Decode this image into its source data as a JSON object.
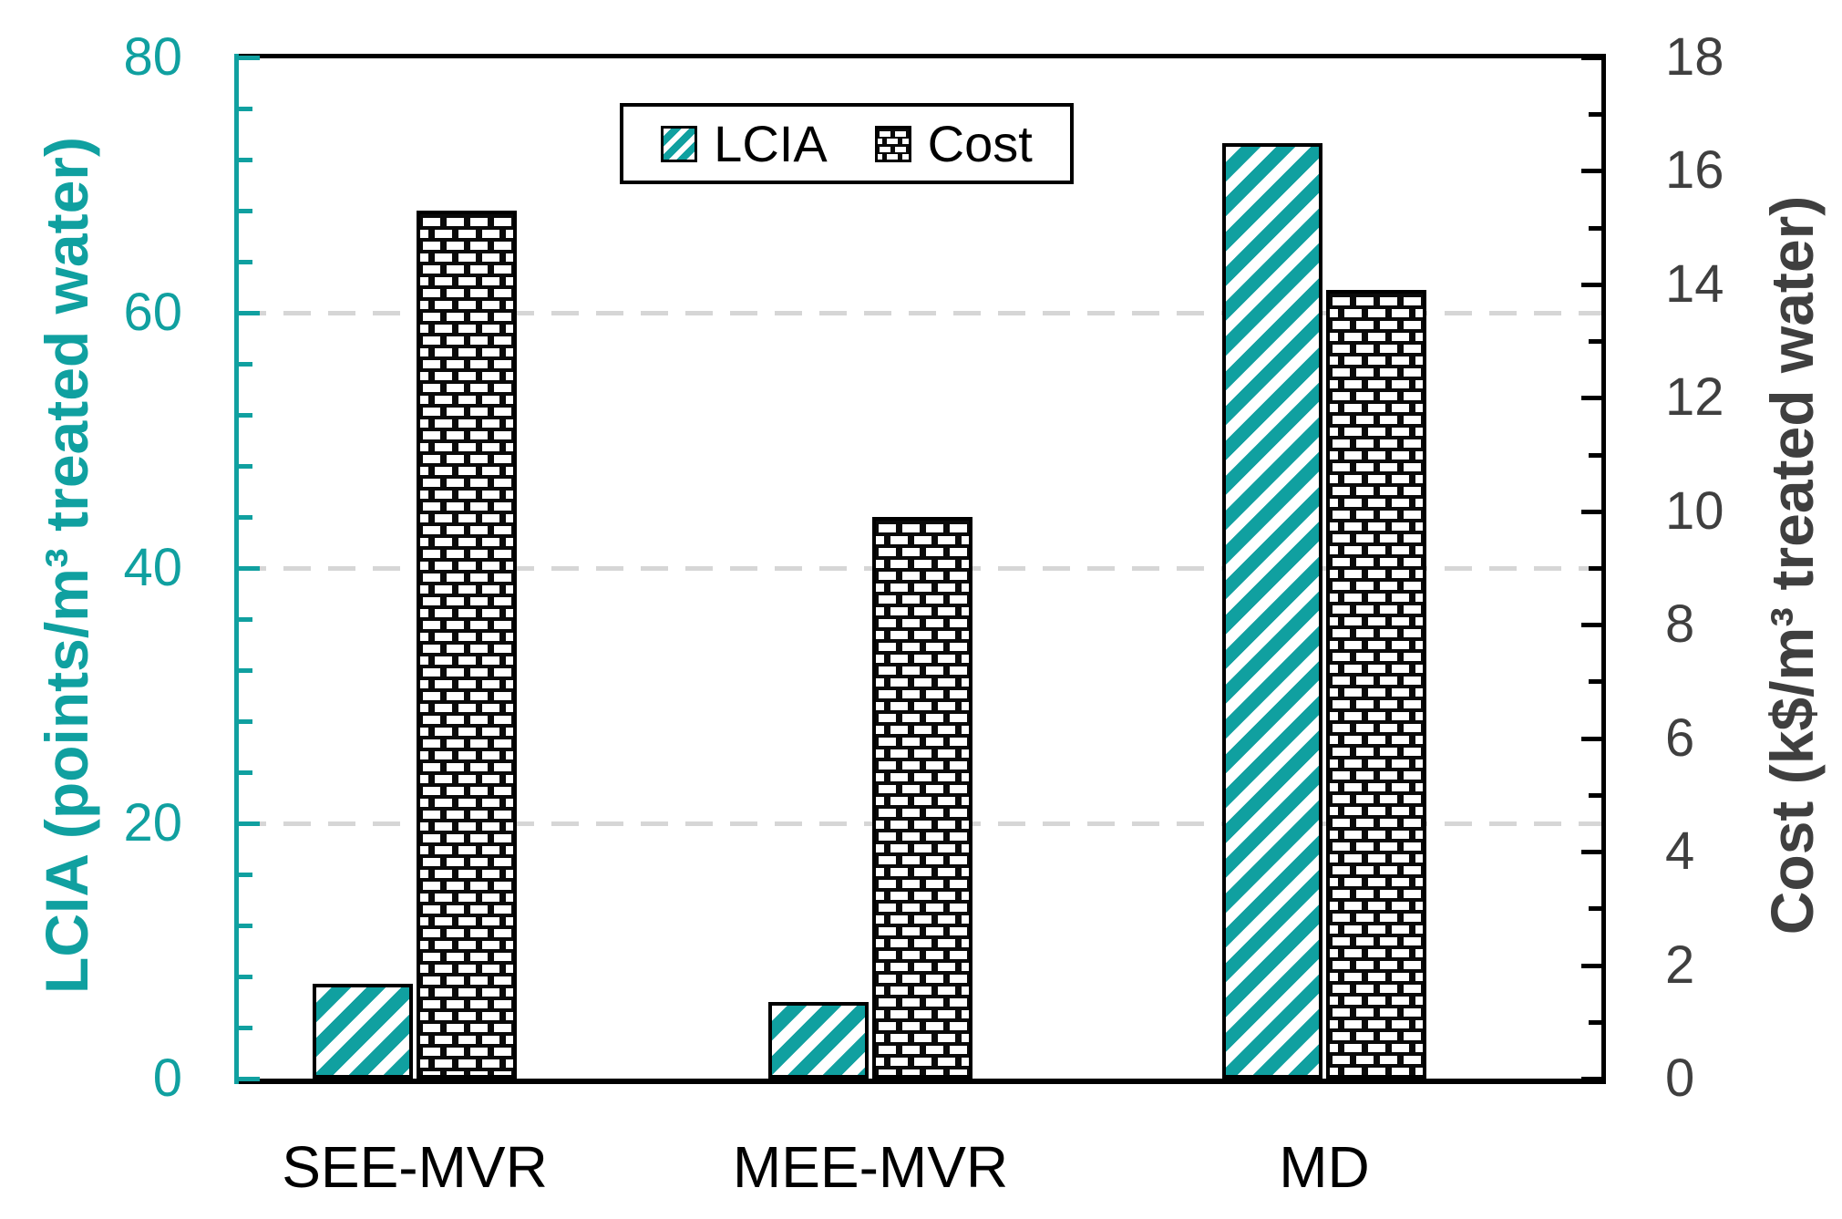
{
  "chart_data": {
    "type": "bar",
    "title": "",
    "categories": [
      "SEE-MVR",
      "MEE-MVR",
      "MD"
    ],
    "series": [
      {
        "name": "LCIA",
        "axis": "left",
        "values": [
          7.4,
          6.0,
          73.3
        ],
        "pattern": "teal-diagonal-hatch",
        "color": "#10a0a0"
      },
      {
        "name": "Cost",
        "axis": "right",
        "values": [
          15.3,
          9.9,
          13.9
        ],
        "pattern": "black-white-dash-brick",
        "color": "#0a0a0a"
      }
    ],
    "left_axis": {
      "label": "LCIA (points/m³ treated water)",
      "min": 0,
      "max": 80,
      "major_step": 20,
      "minor_step": 4,
      "tick_labels": [
        "0",
        "20",
        "40",
        "60",
        "80"
      ],
      "color": "#10a0a0"
    },
    "right_axis": {
      "label": "Cost (k$/m³ treated water)",
      "min": 0,
      "max": 18,
      "major_step": 2,
      "minor_step": 1,
      "tick_labels": [
        "0",
        "2",
        "4",
        "6",
        "8",
        "10",
        "12",
        "14",
        "16",
        "18"
      ],
      "color": "#3f3f3f"
    },
    "gridlines": {
      "left_values": [
        20,
        40,
        60
      ],
      "style": "dashed",
      "color": "#d6d6d6"
    },
    "legend": {
      "items": [
        "LCIA",
        "Cost"
      ],
      "position": "top-center"
    }
  }
}
